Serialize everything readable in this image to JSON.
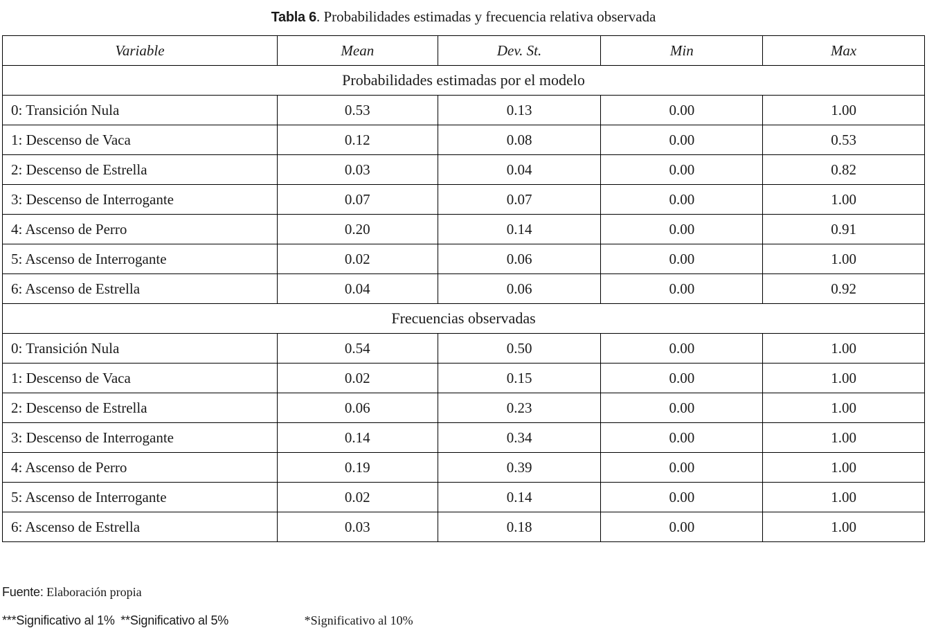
{
  "title": {
    "label": "Tabla 6",
    "rest": ". Probabilidades estimadas y frecuencia relativa observada"
  },
  "table": {
    "columns": [
      {
        "label": "Variable"
      },
      {
        "label": "Mean"
      },
      {
        "label": "Dev. St."
      },
      {
        "label": "Min"
      },
      {
        "label": "Max"
      }
    ],
    "sections": [
      {
        "title": "Probabilidades estimadas por el modelo",
        "rows": [
          {
            "cells": [
              "0: Transición Nula",
              "0.53",
              "0.13",
              "0.00",
              "1.00"
            ]
          },
          {
            "cells": [
              "1: Descenso de Vaca",
              "0.12",
              "0.08",
              "0.00",
              "0.53"
            ]
          },
          {
            "cells": [
              "2: Descenso de Estrella",
              "0.03",
              "0.04",
              "0.00",
              "0.82"
            ]
          },
          {
            "cells": [
              "3: Descenso de Interrogante",
              "0.07",
              "0.07",
              "0.00",
              "1.00"
            ]
          },
          {
            "cells": [
              "4: Ascenso de Perro",
              "0.20",
              "0.14",
              "0.00",
              "0.91"
            ]
          },
          {
            "cells": [
              "5: Ascenso de Interrogante",
              "0.02",
              "0.06",
              "0.00",
              "1.00"
            ]
          },
          {
            "cells": [
              "6: Ascenso de Estrella",
              "0.04",
              "0.06",
              "0.00",
              "0.92"
            ]
          }
        ]
      },
      {
        "title": "Frecuencias observadas",
        "rows": [
          {
            "cells": [
              "0: Transición Nula",
              "0.54",
              "0.50",
              "0.00",
              "1.00"
            ]
          },
          {
            "cells": [
              "1: Descenso de Vaca",
              "0.02",
              "0.15",
              "0.00",
              "1.00"
            ]
          },
          {
            "cells": [
              "2: Descenso de Estrella",
              "0.06",
              "0.23",
              "0.00",
              "1.00"
            ]
          },
          {
            "cells": [
              "3: Descenso de Interrogante",
              "0.14",
              "0.34",
              "0.00",
              "1.00"
            ]
          },
          {
            "cells": [
              "4: Ascenso de Perro",
              "0.19",
              "0.39",
              "0.00",
              "1.00"
            ]
          },
          {
            "cells": [
              "5: Ascenso de Interrogante",
              "0.02",
              "0.14",
              "0.00",
              "1.00"
            ]
          },
          {
            "cells": [
              "6: Ascenso de Estrella",
              "0.03",
              "0.18",
              "0.00",
              "1.00"
            ]
          }
        ]
      }
    ]
  },
  "footer": {
    "source_label": "Fuente:",
    "source_text": "Elaboración propia",
    "significance": [
      "***Significativo al 1%",
      "**Significativo al 5%",
      "*Significativo al 10%"
    ]
  }
}
